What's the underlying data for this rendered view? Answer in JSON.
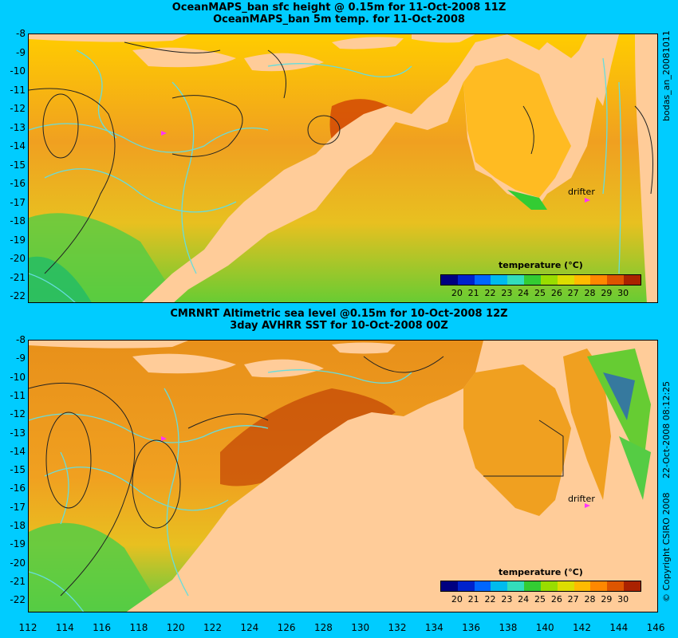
{
  "top_panel": {
    "title_line1": "OceanMAPS_ban sfc height @ 0.15m for 11-Oct-2008 11Z",
    "title_line2": "OceanMAPS_ban 5m temp. for 11-Oct-2008",
    "side_label": "bodas_an_20081011",
    "drifter_label": "drifter"
  },
  "bottom_panel": {
    "title_line1": "CMRNRT Altimetric sea level  @0.15m  for 10-Oct-2008 12Z",
    "title_line2": "3day AVHRR SST for 10-Oct-2008 00Z",
    "side_label": "22-Oct-2008 08:12:25",
    "copyright": "© Copyright CSIRO 2008",
    "drifter_label": "drifter"
  },
  "colorbar": {
    "title": "temperature (°C)",
    "labels": [
      "20",
      "21",
      "22",
      "23",
      "24",
      "25",
      "26",
      "27",
      "28",
      "29",
      "30"
    ],
    "colors": [
      "#000080",
      "#0022cc",
      "#0066ff",
      "#00bbee",
      "#33ddbb",
      "#33cc33",
      "#99dd00",
      "#dddd00",
      "#ffbb00",
      "#ff8800",
      "#dd5500",
      "#aa2200"
    ]
  },
  "axes": {
    "y_labels": [
      "-8",
      "-9",
      "-10",
      "-11",
      "-12",
      "-13",
      "-14",
      "-15",
      "-16",
      "-17",
      "-18",
      "-19",
      "-20",
      "-21",
      "-22"
    ],
    "x_labels": [
      "112",
      "114",
      "116",
      "118",
      "120",
      "122",
      "124",
      "126",
      "128",
      "130",
      "132",
      "134",
      "136",
      "138",
      "140",
      "142",
      "144",
      "146"
    ]
  },
  "colors": {
    "background": "#00ccff",
    "land": "#ffcc99",
    "contour_sla": "#66dddd",
    "contour_height": "#222222",
    "drifter": "#ff33ff"
  }
}
